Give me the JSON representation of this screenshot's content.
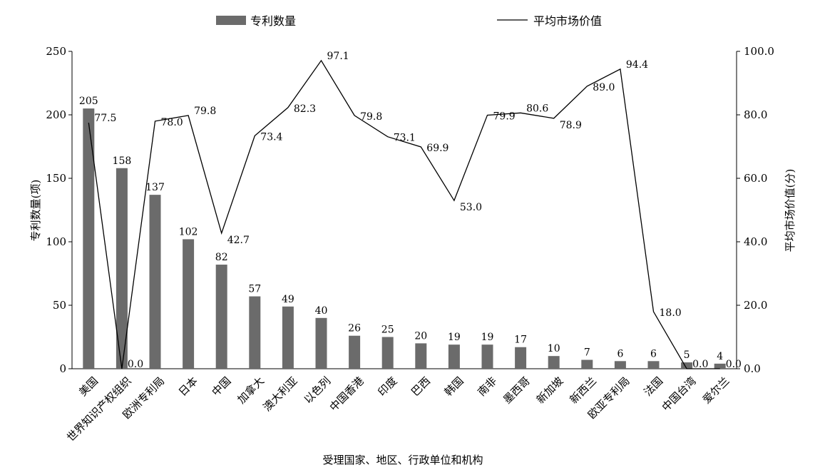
{
  "chart_data": {
    "type": "bar",
    "categories": [
      "美国",
      "世界知识产权组织",
      "欧洲专利局",
      "日本",
      "中国",
      "加拿大",
      "澳大利亚",
      "以色列",
      "中国香港",
      "印度",
      "巴西",
      "韩国",
      "南非",
      "墨西哥",
      "新加坡",
      "新西兰",
      "欧亚专利局",
      "法国",
      "中国台湾",
      "爱尔兰"
    ],
    "series": [
      {
        "name": "专利数量",
        "type": "bar",
        "axis": "left",
        "color": "#6b6b6b",
        "values": [
          205,
          158,
          137,
          102,
          82,
          57,
          49,
          40,
          26,
          25,
          20,
          19,
          19,
          17,
          10,
          7,
          6,
          6,
          5,
          4
        ]
      },
      {
        "name": "平均市场价值",
        "type": "line",
        "axis": "right",
        "color": "#000000",
        "values": [
          77.5,
          0.0,
          78.0,
          79.8,
          42.7,
          73.4,
          82.3,
          97.1,
          79.8,
          73.1,
          69.9,
          53.0,
          79.9,
          80.6,
          78.9,
          89.0,
          94.4,
          18.0,
          0.0,
          0.0
        ]
      }
    ],
    "bar_value_labels": [
      "205",
      "158",
      "137",
      "102",
      "82",
      "57",
      "49",
      "40",
      "26",
      "25",
      "20",
      "19",
      "19",
      "17",
      "10",
      "7",
      "6",
      "6",
      "5",
      "4"
    ],
    "line_value_labels": [
      "77.5",
      "0.0",
      "78.0",
      "79.8",
      "42.7",
      "73.4",
      "82.3",
      "97.1",
      "79.8",
      "73.1",
      "69.9",
      "53.0",
      "79.9",
      "80.6",
      "78.9",
      "89.0",
      "94.4",
      "18.0",
      "0.0",
      "0.0"
    ],
    "xlabel": "受理国家、地区、行政单位和机构",
    "ylabel": "专利数量(项)",
    "y2label": "平均市场价值(分)",
    "ylim": [
      0,
      250
    ],
    "y2lim": [
      0,
      100
    ],
    "yticks": [
      "0",
      "50",
      "100",
      "150",
      "200",
      "250"
    ],
    "y2ticks": [
      "0.0",
      "20.0",
      "40.0",
      "60.0",
      "80.0",
      "100.0"
    ],
    "legend_position": "top",
    "grid": false
  }
}
